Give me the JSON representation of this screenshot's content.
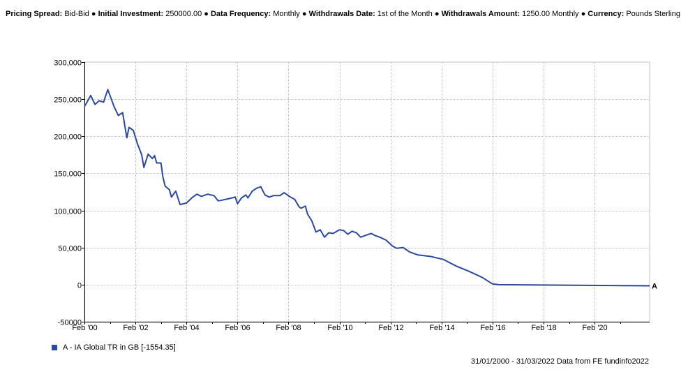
{
  "header": {
    "items": [
      {
        "label": "Pricing Spread:",
        "value": "Bid-Bid"
      },
      {
        "label": "Initial Investment:",
        "value": "250000.00"
      },
      {
        "label": "Data Frequency:",
        "value": "Monthly"
      },
      {
        "label": "Withdrawals Date:",
        "value": "1st of the Month"
      },
      {
        "label": "Withdrawals Amount:",
        "value": "1250.00 Monthly"
      },
      {
        "label": "Currency:",
        "value": "Pounds Sterling"
      }
    ],
    "separator": "●"
  },
  "colors": {
    "series": "#2b4a9e",
    "grid": "#c0c0c0",
    "axis": "#000000"
  },
  "chart_data": {
    "type": "line",
    "title": "",
    "xlabel": "",
    "ylabel": "",
    "x_tick_labels": [
      "Feb '00",
      "Feb '02",
      "Feb '04",
      "Feb '06",
      "Feb '08",
      "Feb '10",
      "Feb '12",
      "Feb '14",
      "Feb '16",
      "Feb '18",
      "Feb '20"
    ],
    "y_tick_labels": [
      "-50000",
      "0",
      "50,000",
      "100,000",
      "150,000",
      "200,000",
      "250,000",
      "300,000"
    ],
    "y_tick_values": [
      -50000,
      0,
      50000,
      100000,
      150000,
      200000,
      250000,
      300000
    ],
    "ylim": [
      -50000,
      300000
    ],
    "xlim": [
      "2000-01-31",
      "2022-03-31"
    ],
    "grid": true,
    "legend_position": "bottom-left",
    "series": [
      {
        "name": "A - IA Global TR in GB [-1554.35]",
        "end_marker": "A",
        "points": [
          [
            "2000-01-31",
            240000
          ],
          [
            "2000-04-30",
            255000
          ],
          [
            "2000-06-30",
            243000
          ],
          [
            "2000-08-31",
            248000
          ],
          [
            "2000-10-31",
            246000
          ],
          [
            "2000-12-31",
            263000
          ],
          [
            "2001-03-31",
            240000
          ],
          [
            "2001-05-31",
            228000
          ],
          [
            "2001-07-31",
            232000
          ],
          [
            "2001-09-30",
            198000
          ],
          [
            "2001-10-31",
            212000
          ],
          [
            "2001-12-31",
            208000
          ],
          [
            "2002-02-28",
            190000
          ],
          [
            "2002-04-30",
            175000
          ],
          [
            "2002-05-31",
            158000
          ],
          [
            "2002-07-31",
            176000
          ],
          [
            "2002-09-30",
            170000
          ],
          [
            "2002-10-31",
            174000
          ],
          [
            "2002-11-30",
            164000
          ],
          [
            "2003-01-31",
            164000
          ],
          [
            "2003-02-28",
            145000
          ],
          [
            "2003-03-31",
            133000
          ],
          [
            "2003-05-31",
            128000
          ],
          [
            "2003-06-30",
            118000
          ],
          [
            "2003-08-31",
            126000
          ],
          [
            "2003-10-31",
            108000
          ],
          [
            "2004-01-31",
            110000
          ],
          [
            "2004-04-30",
            118000
          ],
          [
            "2004-06-30",
            122000
          ],
          [
            "2004-08-31",
            119000
          ],
          [
            "2004-11-30",
            122000
          ],
          [
            "2005-02-28",
            120000
          ],
          [
            "2005-04-30",
            113000
          ],
          [
            "2005-06-30",
            114000
          ],
          [
            "2005-09-30",
            116000
          ],
          [
            "2005-12-31",
            118000
          ],
          [
            "2006-01-31",
            109000
          ],
          [
            "2006-03-31",
            117000
          ],
          [
            "2006-05-31",
            121000
          ],
          [
            "2006-06-30",
            117000
          ],
          [
            "2006-08-31",
            126000
          ],
          [
            "2006-10-31",
            130000
          ],
          [
            "2006-12-31",
            132000
          ],
          [
            "2007-02-28",
            121000
          ],
          [
            "2007-04-30",
            118000
          ],
          [
            "2007-06-30",
            120000
          ],
          [
            "2007-09-30",
            120000
          ],
          [
            "2007-11-30",
            124000
          ],
          [
            "2008-02-29",
            118000
          ],
          [
            "2008-04-30",
            115000
          ],
          [
            "2008-06-30",
            105000
          ],
          [
            "2008-07-31",
            103000
          ],
          [
            "2008-09-30",
            106000
          ],
          [
            "2008-10-31",
            95000
          ],
          [
            "2008-12-31",
            86000
          ],
          [
            "2009-02-28",
            71000
          ],
          [
            "2009-04-30",
            74000
          ],
          [
            "2009-06-30",
            64000
          ],
          [
            "2009-08-31",
            70000
          ],
          [
            "2009-10-31",
            69000
          ],
          [
            "2010-01-31",
            74000
          ],
          [
            "2010-03-31",
            73000
          ],
          [
            "2010-05-31",
            68000
          ],
          [
            "2010-07-31",
            72000
          ],
          [
            "2010-09-30",
            70000
          ],
          [
            "2010-11-30",
            64000
          ],
          [
            "2011-02-28",
            67000
          ],
          [
            "2011-04-30",
            69000
          ],
          [
            "2011-06-30",
            66000
          ],
          [
            "2011-08-31",
            64000
          ],
          [
            "2011-11-30",
            60000
          ],
          [
            "2012-02-29",
            52000
          ],
          [
            "2012-04-30",
            49000
          ],
          [
            "2012-07-31",
            50000
          ],
          [
            "2012-10-31",
            44000
          ],
          [
            "2013-02-28",
            40000
          ],
          [
            "2013-08-31",
            38000
          ],
          [
            "2014-02-28",
            34000
          ],
          [
            "2014-08-31",
            25000
          ],
          [
            "2015-02-28",
            18000
          ],
          [
            "2015-08-31",
            10000
          ],
          [
            "2016-01-31",
            1000
          ],
          [
            "2016-04-30",
            0
          ],
          [
            "2022-03-31",
            -1554.35
          ]
        ]
      }
    ]
  },
  "legend": {
    "label": "A - IA Global TR in GB [-1554.35]"
  },
  "footer": {
    "source": "31/01/2000 - 31/03/2022 Data from FE fundinfo2022"
  }
}
